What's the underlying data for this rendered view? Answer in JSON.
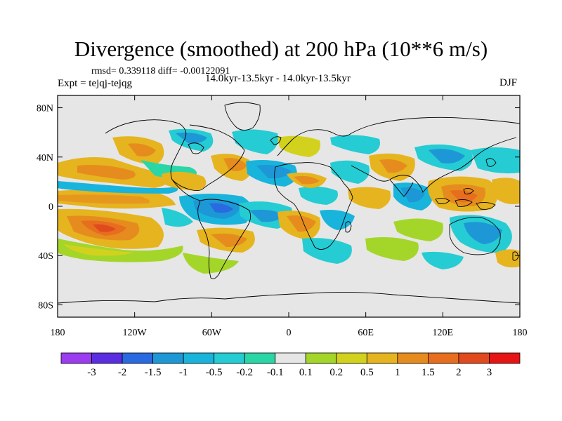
{
  "title": "Divergence (smoothed) at 200 hPa (10**6 m/s)",
  "stats": "rmsd= 0.339118 diff= -0.00122091",
  "expt": "Expt = tejqj-tejqg",
  "period": "14.0kyr-13.5kyr - 14.0kyr-13.5kyr",
  "season": "DJF",
  "map": {
    "projection": "cylindrical equidistant",
    "lon_range": [
      -180,
      180
    ],
    "lat_range": [
      -90,
      90
    ],
    "y_ticks": [
      {
        "lat": 80,
        "label": "80N"
      },
      {
        "lat": 40,
        "label": "40N"
      },
      {
        "lat": 0,
        "label": "0"
      },
      {
        "lat": -40,
        "label": "40S"
      },
      {
        "lat": -80,
        "label": "80S"
      }
    ],
    "x_ticks": [
      {
        "lon": -180,
        "label": "180"
      },
      {
        "lon": -120,
        "label": "120W"
      },
      {
        "lon": -60,
        "label": "60W"
      },
      {
        "lon": 0,
        "label": "0"
      },
      {
        "lon": 60,
        "label": "60E"
      },
      {
        "lon": 120,
        "label": "120E"
      },
      {
        "lon": 180,
        "label": "180"
      }
    ],
    "background_color": "#e6e6e6",
    "features": [
      {
        "name": "central-pacific-convergence",
        "lon": -145,
        "lat": -16,
        "value": 2.0
      },
      {
        "name": "east-pacific-divergence",
        "lon": -125,
        "lat": 28,
        "value": 0.6
      },
      {
        "name": "amazon-convergence",
        "lon": -60,
        "lat": -3,
        "value": -1.2
      },
      {
        "name": "atlantic-convergence",
        "lon": -30,
        "lat": 14,
        "value": -1.0
      },
      {
        "name": "africa-divergence",
        "lon": 15,
        "lat": -12,
        "value": 1.2
      },
      {
        "name": "indian-ocean-convergence",
        "lon": 72,
        "lat": 0,
        "value": -1.0
      },
      {
        "name": "maritime-continent-divergence",
        "lon": 130,
        "lat": 0,
        "value": 1.6
      },
      {
        "name": "south-pacific-convergence",
        "lon": 150,
        "lat": -30,
        "value": -1.0
      },
      {
        "name": "asia-divergence",
        "lon": 75,
        "lat": 32,
        "value": 1.0
      }
    ]
  },
  "colorbar": {
    "colors": [
      "#9b3cf0",
      "#5a2ee0",
      "#2a6ae0",
      "#1d97d6",
      "#18b4dc",
      "#25ccd3",
      "#2bd6a6",
      "#e6e6e6",
      "#a4d62a",
      "#d2d21e",
      "#e6b41e",
      "#e68c1e",
      "#e66e1e",
      "#e04a1e",
      "#e61414"
    ],
    "labels": [
      "-3",
      "-2",
      "-1.5",
      "-1",
      "-0.5",
      "-0.2",
      "-0.1",
      "0.1",
      "0.2",
      "0.5",
      "1",
      "1.5",
      "2",
      "3"
    ]
  }
}
